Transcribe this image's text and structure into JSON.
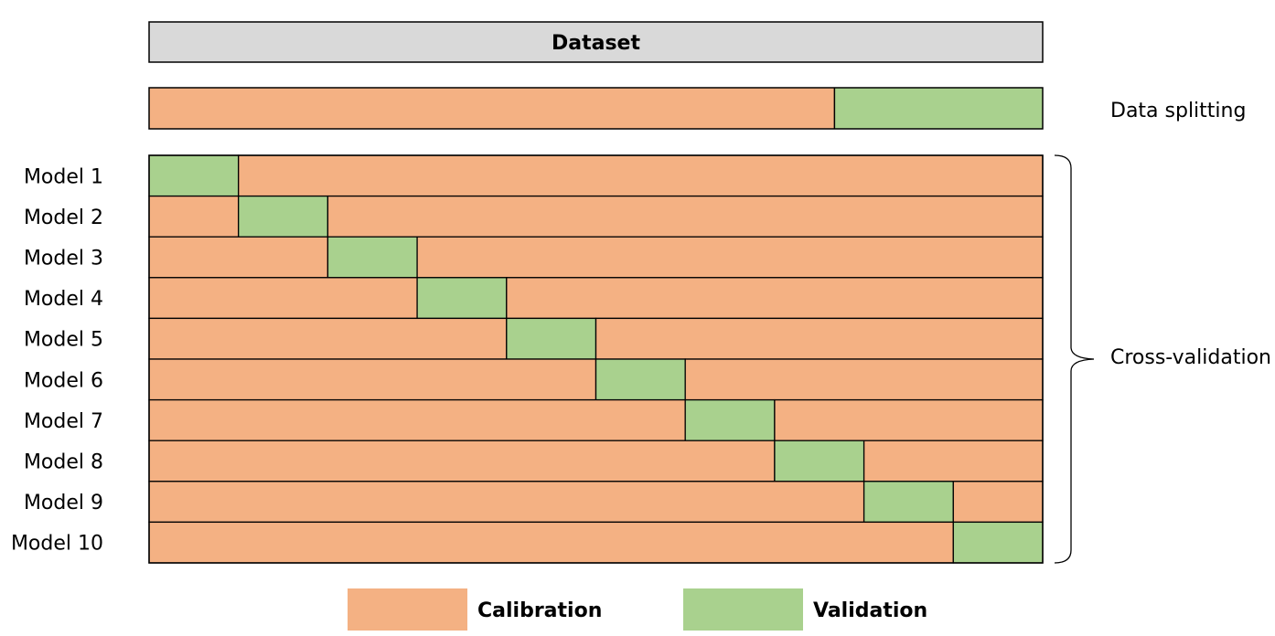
{
  "dataset": {
    "label": "Dataset",
    "fill": "#d9d9d9"
  },
  "colors": {
    "calibration": "#f4b183",
    "validation": "#a9d18e",
    "border": "#000000"
  },
  "data_splitting": {
    "label": "Data splitting",
    "validation_fraction": 0.233
  },
  "cross_validation": {
    "label": "Cross-validation",
    "folds": 10,
    "models": [
      {
        "label": "Model 1",
        "validation_fold": 1
      },
      {
        "label": "Model 2",
        "validation_fold": 2
      },
      {
        "label": "Model 3",
        "validation_fold": 3
      },
      {
        "label": "Model 4",
        "validation_fold": 4
      },
      {
        "label": "Model 5",
        "validation_fold": 5
      },
      {
        "label": "Model 6",
        "validation_fold": 6
      },
      {
        "label": "Model 7",
        "validation_fold": 7
      },
      {
        "label": "Model 8",
        "validation_fold": 8
      },
      {
        "label": "Model 9",
        "validation_fold": 9
      },
      {
        "label": "Model 10",
        "validation_fold": 10
      }
    ]
  },
  "legend": {
    "calibration_label": "Calibration",
    "validation_label": "Validation"
  }
}
